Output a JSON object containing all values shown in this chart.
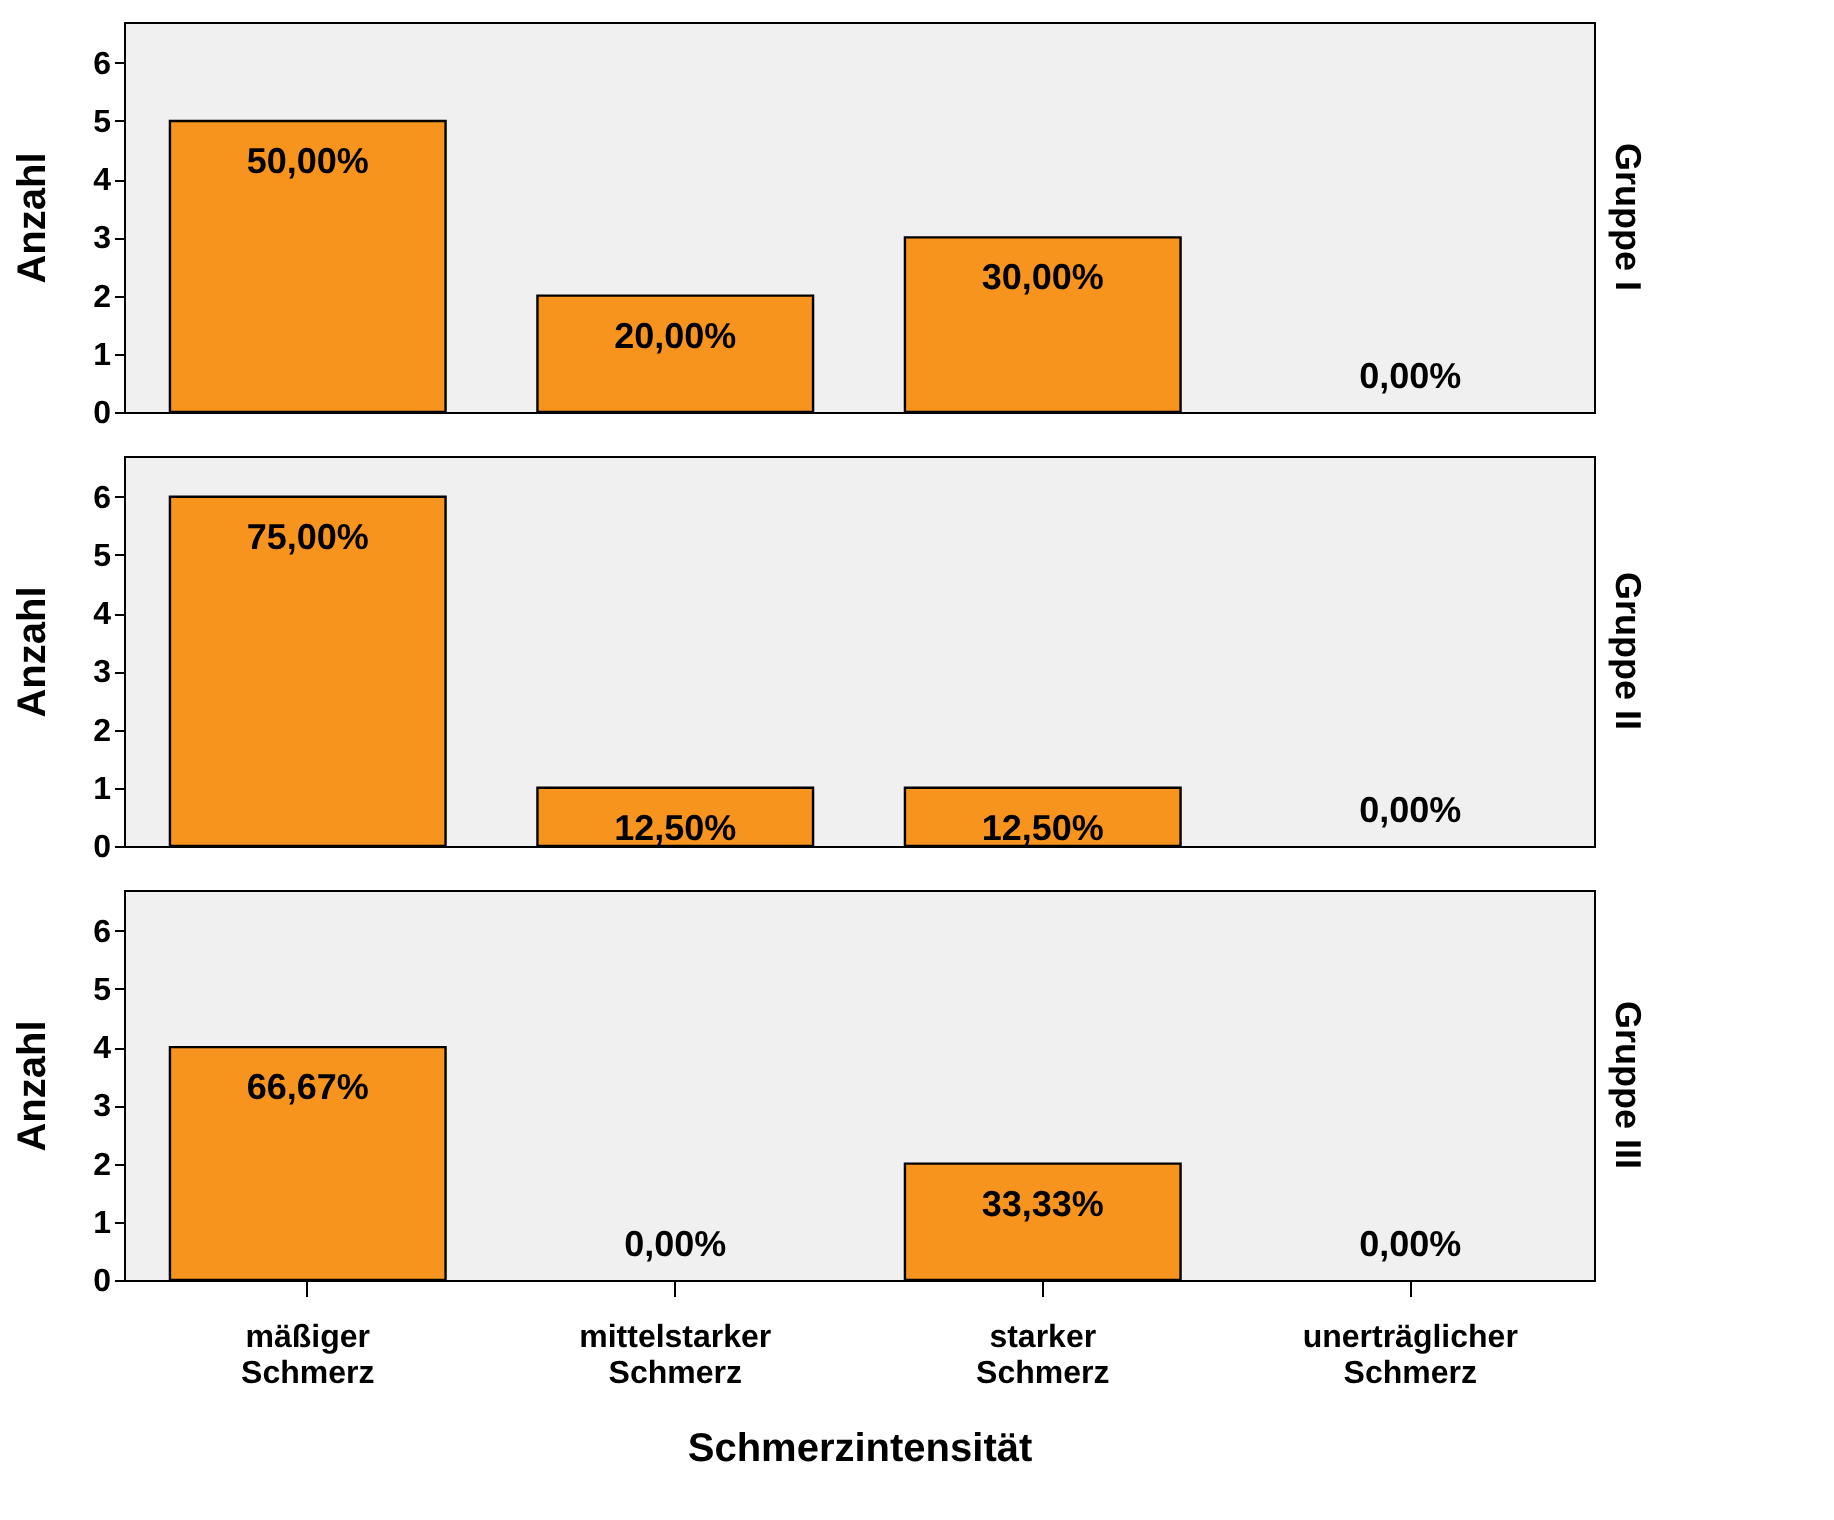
{
  "chart_data": [
    {
      "type": "bar",
      "title": "Gruppe I",
      "ylabel": "Anzahl",
      "categories": [
        "mäßiger Schmerz",
        "mittelstarker Schmerz",
        "starker Schmerz",
        "unerträglicher Schmerz"
      ],
      "values": [
        5,
        2,
        3,
        0
      ],
      "color": "#f7941d",
      "ylim": [
        0,
        6.7
      ],
      "yticks": [
        0,
        1,
        2,
        3,
        4,
        5,
        6
      ],
      "grid": false,
      "tick_labels": "y",
      "annotations": [
        {
          "text": "50,00%",
          "x": "mäßiger Schmerz",
          "y": 5
        },
        {
          "text": "20,00%",
          "x": "mittelstarker Schmerz",
          "y": 2
        },
        {
          "text": "30,00%",
          "x": "starker Schmerz",
          "y": 3
        },
        {
          "text": "0,00%",
          "x": "unerträglicher Schmerz",
          "y": 0
        }
      ]
    },
    {
      "type": "bar",
      "title": "Gruppe II",
      "ylabel": "Anzahl",
      "categories": [
        "mäßiger Schmerz",
        "mittelstarker Schmerz",
        "starker Schmerz",
        "unerträglicher Schmerz"
      ],
      "values": [
        6,
        1,
        1,
        0
      ],
      "color": "#f7941d",
      "ylim": [
        0,
        6.7
      ],
      "yticks": [
        0,
        1,
        2,
        3,
        4,
        5,
        6
      ],
      "grid": false,
      "tick_labels": "y",
      "annotations": [
        {
          "text": "75,00%",
          "x": "mäßiger Schmerz",
          "y": 6
        },
        {
          "text": "12,50%",
          "x": "mittelstarker Schmerz",
          "y": 1
        },
        {
          "text": "12,50%",
          "x": "starker Schmerz",
          "y": 1
        },
        {
          "text": "0,00%",
          "x": "unerträglicher Schmerz",
          "y": 0
        }
      ]
    },
    {
      "type": "bar",
      "title": "Gruppe III",
      "ylabel": "Anzahl",
      "xlabel": "Schmerzintensität",
      "categories": [
        "mäßiger Schmerz",
        "mittelstarker Schmerz",
        "starker Schmerz",
        "unerträglicher Schmerz"
      ],
      "values": [
        4,
        0,
        2,
        0
      ],
      "color": "#f7941d",
      "ylim": [
        0,
        6.7
      ],
      "yticks": [
        0,
        1,
        2,
        3,
        4,
        5,
        6
      ],
      "grid": false,
      "annotations": [
        {
          "text": "66,67%",
          "x": "mäßiger Schmerz",
          "y": 4
        },
        {
          "text": "0,00%",
          "x": "mittelstarker Schmerz",
          "y": 0
        },
        {
          "text": "33,33%",
          "x": "starker Schmerz",
          "y": 2
        },
        {
          "text": "0,00%",
          "x": "unerträglicher Schmerz",
          "y": 0
        }
      ]
    }
  ]
}
